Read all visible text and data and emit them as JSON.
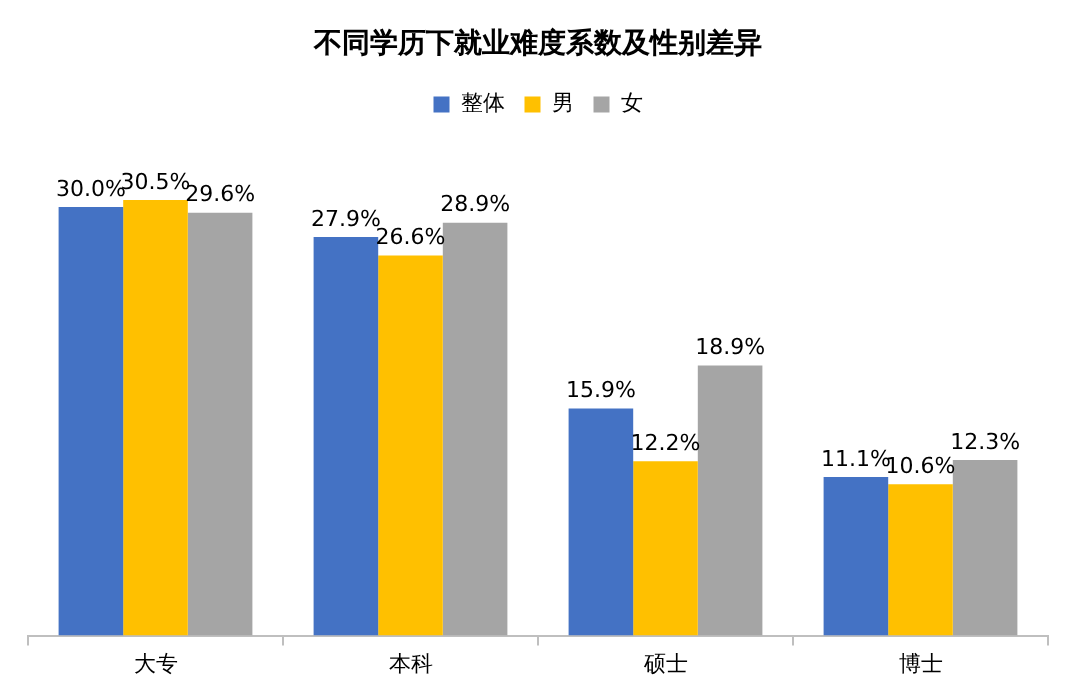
{
  "chart_data": {
    "type": "bar",
    "title": "不同学历下就业难度系数及性别差异",
    "categories": [
      "大专",
      "本科",
      "硕士",
      "博士"
    ],
    "series": [
      {
        "name": "整体",
        "color": "#4472c4",
        "values": [
          30.0,
          27.9,
          15.9,
          11.1
        ],
        "value_labels": [
          "30.0%",
          "27.9%",
          "15.9%",
          "11.1%"
        ]
      },
      {
        "name": "男",
        "color": "#ffc000",
        "values": [
          30.5,
          26.6,
          12.2,
          10.6
        ],
        "value_labels": [
          "30.5%",
          "26.6%",
          "12.2%",
          "10.6%"
        ]
      },
      {
        "name": "女",
        "color": "#a5a5a5",
        "values": [
          29.6,
          28.9,
          18.9,
          12.3
        ],
        "value_labels": [
          "29.6%",
          "28.9%",
          "18.9%",
          "12.3%"
        ]
      }
    ],
    "legend": "top",
    "grid": false,
    "tick_labels": "x"
  }
}
